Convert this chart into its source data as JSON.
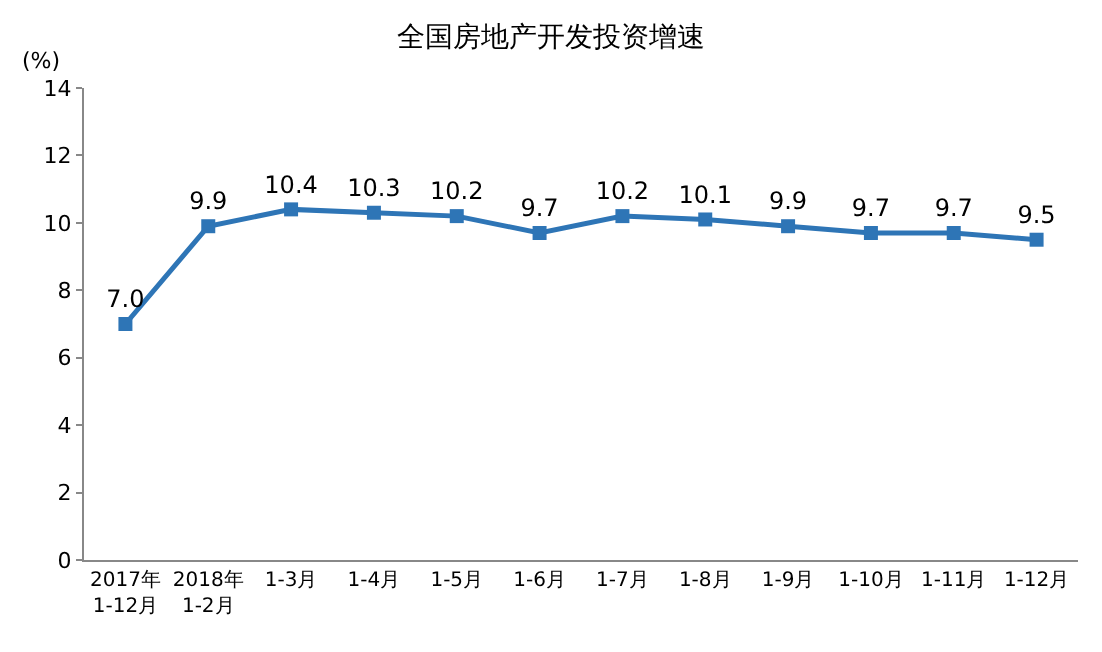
{
  "chart_data": {
    "type": "line",
    "title": "全国房地产开发投资增速",
    "ylabel": "(%)",
    "categories": [
      "2017年\n1-12月",
      "2018年\n1-2月",
      "1-3月",
      "1-4月",
      "1-5月",
      "1-6月",
      "1-7月",
      "1-8月",
      "1-9月",
      "1-10月",
      "1-11月",
      "1-12月"
    ],
    "series": [
      {
        "color": "#2e75b6",
        "values": [
          7.0,
          9.9,
          10.4,
          10.3,
          10.2,
          9.7,
          10.2,
          10.1,
          9.9,
          9.7,
          9.7,
          9.5
        ],
        "value_labels": [
          "7.0",
          "9.9",
          "10.4",
          "10.3",
          "10.2",
          "9.7",
          "10.2",
          "10.1",
          "9.9",
          "9.7",
          "9.7",
          "9.5"
        ]
      }
    ],
    "ylim": [
      0,
      14
    ],
    "yticks": [
      0,
      2,
      4,
      6,
      8,
      10,
      12,
      14
    ],
    "marker": "square",
    "line_style": "solid",
    "grid": false,
    "legend": false
  }
}
